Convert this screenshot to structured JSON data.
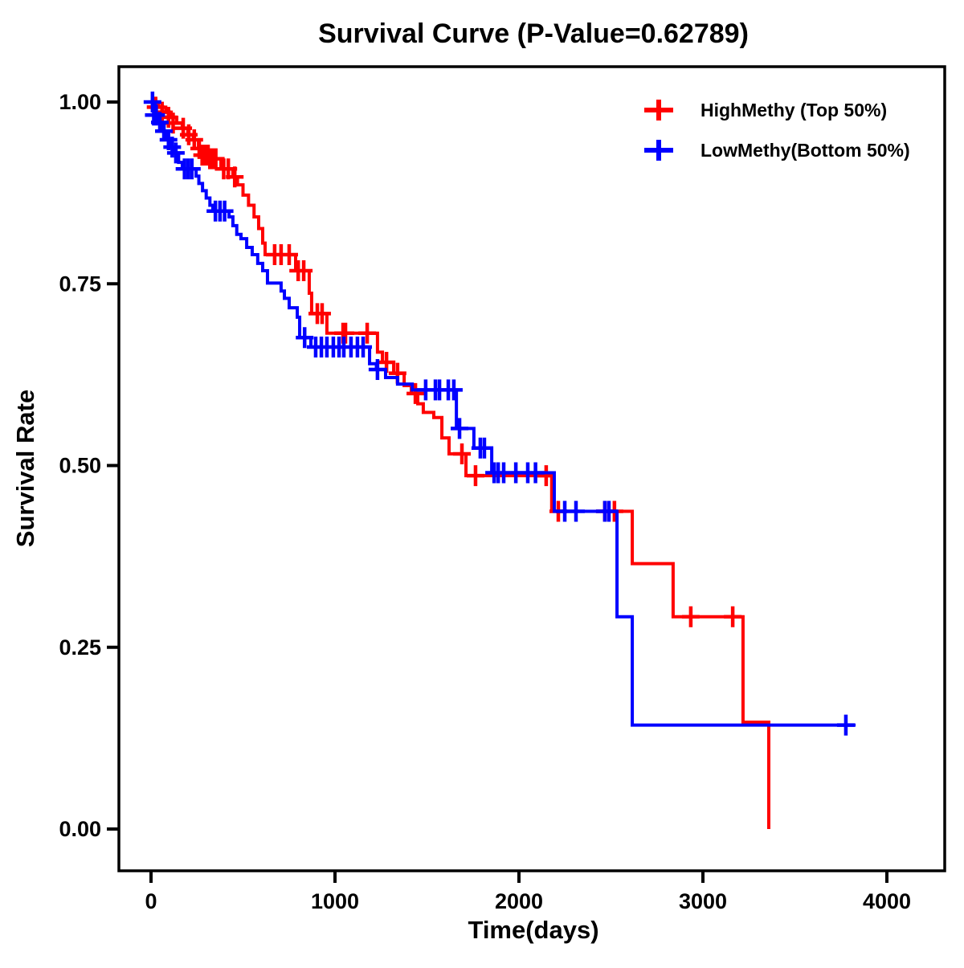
{
  "title": "Survival Curve (P-Value=0.62789)",
  "axes": {
    "x_label": "Time(days)",
    "y_label": "Survival Rate",
    "x_tick_labels": [
      "0",
      "1000",
      "2000",
      "3000",
      "4000"
    ],
    "y_tick_labels": [
      "0.00",
      "0.25",
      "0.50",
      "0.75",
      "1.00"
    ]
  },
  "legend": {
    "items": [
      {
        "label": "HighMethy (Top 50%)",
        "color": "#ff0000",
        "marker": "plus-icon"
      },
      {
        "label": "LowMethy(Bottom 50%)",
        "color": "#0000ff",
        "marker": "plus-icon"
      }
    ]
  },
  "colors": {
    "high_methy": "#ff0000",
    "low_methy": "#0000ff",
    "axis": "#000000",
    "background": "#ffffff"
  },
  "chart_data": {
    "type": "line",
    "subtype": "kaplan-meier-step",
    "title": "Survival Curve (P-Value=0.62789)",
    "p_value": 0.62789,
    "xlabel": "Time(days)",
    "ylabel": "Survival Rate",
    "xlim": [
      0,
      4300
    ],
    "ylim": [
      0.0,
      1.0
    ],
    "x_ticks": [
      0,
      1000,
      2000,
      3000,
      4000
    ],
    "y_ticks": [
      0.0,
      0.25,
      0.5,
      0.75,
      1.0
    ],
    "grid": false,
    "legend_position": "top-right",
    "series": [
      {
        "name": "HighMethy (Top 50%)",
        "color": "#ff0000",
        "steps": [
          [
            0,
            1.0
          ],
          [
            40,
            0.993
          ],
          [
            80,
            0.986
          ],
          [
            110,
            0.979
          ],
          [
            140,
            0.971
          ],
          [
            170,
            0.964
          ],
          [
            200,
            0.955
          ],
          [
            230,
            0.948
          ],
          [
            258,
            0.936
          ],
          [
            300,
            0.927
          ],
          [
            340,
            0.922
          ],
          [
            380,
            0.908
          ],
          [
            445,
            0.897
          ],
          [
            470,
            0.886
          ],
          [
            500,
            0.872
          ],
          [
            530,
            0.858
          ],
          [
            560,
            0.842
          ],
          [
            585,
            0.826
          ],
          [
            607,
            0.806
          ],
          [
            620,
            0.79
          ],
          [
            786,
            0.768
          ],
          [
            860,
            0.737
          ],
          [
            873,
            0.709
          ],
          [
            956,
            0.682
          ],
          [
            1231,
            0.656
          ],
          [
            1258,
            0.642
          ],
          [
            1319,
            0.627
          ],
          [
            1376,
            0.61
          ],
          [
            1415,
            0.599
          ],
          [
            1450,
            0.585
          ],
          [
            1480,
            0.573
          ],
          [
            1537,
            0.566
          ],
          [
            1581,
            0.538
          ],
          [
            1620,
            0.516
          ],
          [
            1712,
            0.486
          ],
          [
            2178,
            0.437
          ],
          [
            2616,
            0.365
          ],
          [
            2838,
            0.292
          ],
          [
            3218,
            0.147
          ],
          [
            3358,
            0.0
          ]
        ],
        "end_t": 3358,
        "censors": [
          [
            25,
            0.993
          ],
          [
            60,
            0.986
          ],
          [
            95,
            0.979
          ],
          [
            120,
            0.971
          ],
          [
            175,
            0.964
          ],
          [
            205,
            0.955
          ],
          [
            235,
            0.948
          ],
          [
            262,
            0.936
          ],
          [
            278,
            0.927
          ],
          [
            295,
            0.927
          ],
          [
            310,
            0.927
          ],
          [
            320,
            0.922
          ],
          [
            335,
            0.922
          ],
          [
            352,
            0.922
          ],
          [
            395,
            0.908
          ],
          [
            420,
            0.908
          ],
          [
            455,
            0.897
          ],
          [
            672,
            0.79
          ],
          [
            707,
            0.79
          ],
          [
            751,
            0.79
          ],
          [
            800,
            0.768
          ],
          [
            830,
            0.768
          ],
          [
            904,
            0.709
          ],
          [
            930,
            0.709
          ],
          [
            1044,
            0.682
          ],
          [
            1057,
            0.682
          ],
          [
            1175,
            0.682
          ],
          [
            1280,
            0.642
          ],
          [
            1340,
            0.627
          ],
          [
            1437,
            0.599
          ],
          [
            1690,
            0.516
          ],
          [
            1764,
            0.486
          ],
          [
            2148,
            0.486
          ],
          [
            2214,
            0.437
          ],
          [
            2467,
            0.437
          ],
          [
            2519,
            0.437
          ],
          [
            2934,
            0.292
          ],
          [
            3162,
            0.292
          ]
        ]
      },
      {
        "name": "LowMethy(Bottom 50%)",
        "color": "#0000ff",
        "steps": [
          [
            0,
            1.0
          ],
          [
            22,
            0.982
          ],
          [
            40,
            0.972
          ],
          [
            60,
            0.96
          ],
          [
            85,
            0.948
          ],
          [
            105,
            0.938
          ],
          [
            127,
            0.93
          ],
          [
            150,
            0.917
          ],
          [
            170,
            0.908
          ],
          [
            245,
            0.898
          ],
          [
            260,
            0.888
          ],
          [
            280,
            0.878
          ],
          [
            300,
            0.868
          ],
          [
            320,
            0.858
          ],
          [
            336,
            0.85
          ],
          [
            424,
            0.842
          ],
          [
            445,
            0.83
          ],
          [
            466,
            0.818
          ],
          [
            489,
            0.812
          ],
          [
            520,
            0.8
          ],
          [
            550,
            0.79
          ],
          [
            580,
            0.778
          ],
          [
            607,
            0.768
          ],
          [
            633,
            0.751
          ],
          [
            707,
            0.74
          ],
          [
            725,
            0.73
          ],
          [
            751,
            0.717
          ],
          [
            795,
            0.704
          ],
          [
            808,
            0.676
          ],
          [
            869,
            0.663
          ],
          [
            1188,
            0.64
          ],
          [
            1225,
            0.632
          ],
          [
            1275,
            0.621
          ],
          [
            1340,
            0.612
          ],
          [
            1420,
            0.604
          ],
          [
            1660,
            0.551
          ],
          [
            1755,
            0.524
          ],
          [
            1852,
            0.49
          ],
          [
            2192,
            0.437
          ],
          [
            2533,
            0.292
          ],
          [
            2616,
            0.143
          ]
        ],
        "end_t": 3830,
        "censors": [
          [
            8,
            1.0
          ],
          [
            15,
            0.982
          ],
          [
            28,
            0.982
          ],
          [
            48,
            0.972
          ],
          [
            70,
            0.96
          ],
          [
            95,
            0.948
          ],
          [
            115,
            0.938
          ],
          [
            135,
            0.93
          ],
          [
            182,
            0.908
          ],
          [
            202,
            0.908
          ],
          [
            222,
            0.908
          ],
          [
            350,
            0.85
          ],
          [
            375,
            0.85
          ],
          [
            400,
            0.85
          ],
          [
            835,
            0.676
          ],
          [
            895,
            0.663
          ],
          [
            926,
            0.663
          ],
          [
            956,
            0.663
          ],
          [
            991,
            0.663
          ],
          [
            1022,
            0.663
          ],
          [
            1048,
            0.663
          ],
          [
            1087,
            0.663
          ],
          [
            1122,
            0.663
          ],
          [
            1153,
            0.663
          ],
          [
            1231,
            0.632
          ],
          [
            1493,
            0.604
          ],
          [
            1546,
            0.604
          ],
          [
            1568,
            0.604
          ],
          [
            1616,
            0.604
          ],
          [
            1646,
            0.604
          ],
          [
            1677,
            0.551
          ],
          [
            1790,
            0.524
          ],
          [
            1812,
            0.524
          ],
          [
            1865,
            0.49
          ],
          [
            1887,
            0.49
          ],
          [
            1917,
            0.49
          ],
          [
            1983,
            0.49
          ],
          [
            2048,
            0.49
          ],
          [
            2090,
            0.49
          ],
          [
            2249,
            0.437
          ],
          [
            2310,
            0.437
          ],
          [
            2467,
            0.437
          ],
          [
            2489,
            0.437
          ],
          [
            3777,
            0.143
          ]
        ]
      }
    ]
  }
}
